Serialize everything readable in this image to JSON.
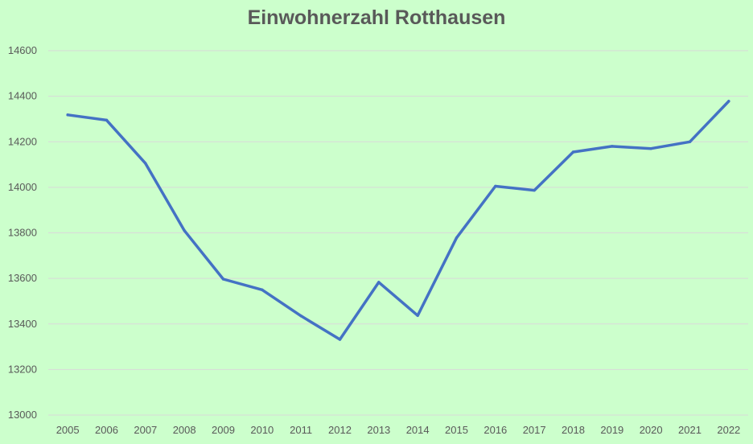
{
  "chart_data": {
    "type": "line",
    "title": "Einwohnerzahl Rotthausen",
    "xlabel": "",
    "ylabel": "",
    "categories": [
      "2005",
      "2006",
      "2007",
      "2008",
      "2009",
      "2010",
      "2011",
      "2012",
      "2013",
      "2014",
      "2015",
      "2016",
      "2017",
      "2018",
      "2019",
      "2020",
      "2021",
      "2022"
    ],
    "series": [
      {
        "values": [
          14318,
          14295,
          14105,
          13810,
          13597,
          13550,
          13435,
          13332,
          13583,
          13437,
          13778,
          14005,
          13987,
          14155,
          14180,
          14170,
          14200,
          14378
        ],
        "color": "#4472c4"
      }
    ],
    "ylim": [
      13000,
      14600
    ],
    "yticks": [
      "13000",
      "13200",
      "13400",
      "13600",
      "13800",
      "14000",
      "14200",
      "14400",
      "14600"
    ],
    "grid": true,
    "legend": "none"
  },
  "colors": {
    "background": "#ccffcc",
    "line": "#4472c4",
    "grid": "#d9d9d9",
    "text": "#595959"
  }
}
